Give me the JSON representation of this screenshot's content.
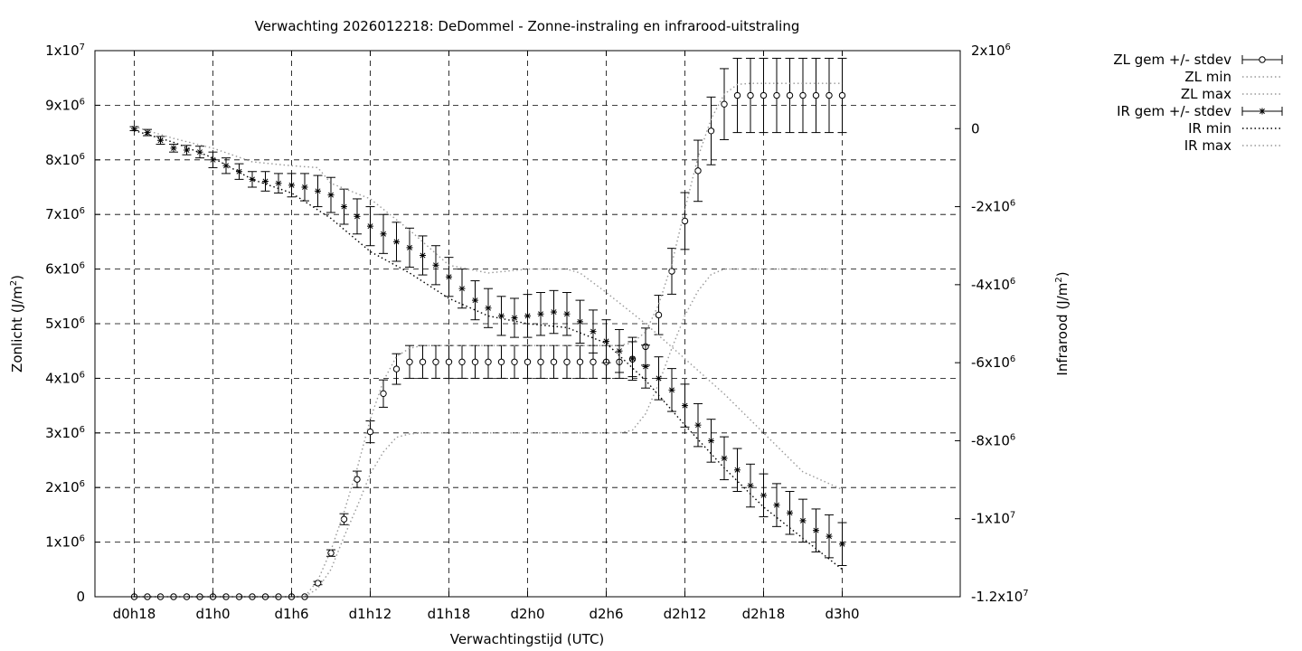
{
  "chart_data": {
    "type": "line",
    "title": "Verwachting 2026012218: DeDommel - Zonne-instraling en infrarood-uitstraling",
    "xlabel": "Verwachtingstijd (UTC)",
    "ylabel_left": {
      "base": "Zonlicht (J/m",
      "sup": "2",
      "tail": ")"
    },
    "ylabel_right": {
      "base": "Infrarood (J/m",
      "sup": "2",
      "tail": ")"
    },
    "x_unit": "hours",
    "xlim": [
      -3,
      63
    ],
    "y_left_lim": [
      0,
      10000000
    ],
    "y_right_lim": [
      -12000000,
      2000000
    ],
    "grid": true,
    "legend_position": "outside-top-right",
    "x_ticks": [
      {
        "value": 0,
        "label": "d0h18"
      },
      {
        "value": 6,
        "label": "d1h0"
      },
      {
        "value": 12,
        "label": "d1h6"
      },
      {
        "value": 18,
        "label": "d1h12"
      },
      {
        "value": 24,
        "label": "d1h18"
      },
      {
        "value": 30,
        "label": "d2h0"
      },
      {
        "value": 36,
        "label": "d2h6"
      },
      {
        "value": 42,
        "label": "d2h12"
      },
      {
        "value": 48,
        "label": "d2h18"
      },
      {
        "value": 54,
        "label": "d3h0"
      }
    ],
    "y_left_ticks": [
      {
        "value": 0,
        "base": "0",
        "exp": ""
      },
      {
        "value": 1000000,
        "base": "1x10",
        "exp": "6"
      },
      {
        "value": 2000000,
        "base": "2x10",
        "exp": "6"
      },
      {
        "value": 3000000,
        "base": "3x10",
        "exp": "6"
      },
      {
        "value": 4000000,
        "base": "4x10",
        "exp": "6"
      },
      {
        "value": 5000000,
        "base": "5x10",
        "exp": "6"
      },
      {
        "value": 6000000,
        "base": "6x10",
        "exp": "6"
      },
      {
        "value": 7000000,
        "base": "7x10",
        "exp": "6"
      },
      {
        "value": 8000000,
        "base": "8x10",
        "exp": "6"
      },
      {
        "value": 9000000,
        "base": "9x10",
        "exp": "6"
      },
      {
        "value": 10000000,
        "base": "1x10",
        "exp": "7"
      }
    ],
    "y_right_ticks": [
      {
        "value": -12000000,
        "base": "-1.2x10",
        "exp": "7"
      },
      {
        "value": -10000000,
        "base": "-1x10",
        "exp": "7"
      },
      {
        "value": -8000000,
        "base": "-8x10",
        "exp": "6"
      },
      {
        "value": -6000000,
        "base": "-6x10",
        "exp": "6"
      },
      {
        "value": -4000000,
        "base": "-4x10",
        "exp": "6"
      },
      {
        "value": -2000000,
        "base": "-2x10",
        "exp": "6"
      },
      {
        "value": 0,
        "base": "0",
        "exp": ""
      },
      {
        "value": 2000000,
        "base": "2x10",
        "exp": "6"
      }
    ],
    "series": [
      {
        "name": "ZL gem +/- stdev",
        "axis": "left",
        "marker": "circle",
        "errorbars": true,
        "x": [
          0,
          1,
          2,
          3,
          4,
          5,
          6,
          7,
          8,
          9,
          10,
          11,
          12,
          13,
          14,
          15,
          16,
          17,
          18,
          19,
          20,
          21,
          22,
          23,
          24,
          25,
          26,
          27,
          28,
          29,
          30,
          31,
          32,
          33,
          34,
          35,
          36,
          37,
          38,
          39,
          40,
          41,
          42,
          43,
          44,
          45,
          46,
          47,
          48,
          49,
          50,
          51,
          52,
          53,
          54
        ],
        "y": [
          0,
          0,
          0,
          0,
          0,
          0,
          0,
          0,
          0,
          0,
          0,
          0,
          0,
          0,
          250000,
          800000,
          1420000,
          2150000,
          3020000,
          3720000,
          4170000,
          4300000,
          4300000,
          4300000,
          4300000,
          4300000,
          4300000,
          4300000,
          4300000,
          4300000,
          4300000,
          4300000,
          4300000,
          4300000,
          4300000,
          4300000,
          4300000,
          4300000,
          4350000,
          4580000,
          5160000,
          5960000,
          6880000,
          7800000,
          8530000,
          9020000,
          9180000,
          9180000,
          9180000,
          9180000,
          9180000,
          9180000,
          9180000,
          9180000,
          9180000
        ],
        "yerr": [
          0,
          0,
          0,
          0,
          0,
          0,
          0,
          0,
          0,
          0,
          0,
          0,
          0,
          0,
          30000,
          60000,
          100000,
          150000,
          200000,
          250000,
          280000,
          300000,
          300000,
          300000,
          300000,
          300000,
          300000,
          300000,
          300000,
          300000,
          300000,
          300000,
          300000,
          300000,
          300000,
          300000,
          300000,
          300000,
          320000,
          340000,
          360000,
          420000,
          520000,
          560000,
          620000,
          650000,
          680000,
          680000,
          680000,
          680000,
          680000,
          680000,
          680000,
          680000,
          680000
        ]
      },
      {
        "name": "ZL min",
        "axis": "left",
        "style": "dotted",
        "color": "#999999",
        "x": [
          0,
          13,
          14,
          15,
          16,
          17,
          18,
          19,
          20,
          21,
          22,
          23,
          24,
          30,
          36,
          37,
          38,
          39,
          40,
          41,
          42,
          43,
          44,
          45,
          46,
          47,
          48,
          54
        ],
        "y": [
          0,
          0,
          150000,
          500000,
          1100000,
          1650000,
          2250000,
          2650000,
          2920000,
          2980000,
          3000000,
          3000000,
          3000000,
          3000000,
          3000000,
          3000000,
          3050000,
          3350000,
          3900000,
          4550000,
          5150000,
          5600000,
          5900000,
          6000000,
          6000000,
          6000000,
          6000000,
          6000000
        ]
      },
      {
        "name": "ZL max",
        "axis": "left",
        "style": "dotted",
        "color": "#999999",
        "x": [
          0,
          13,
          14,
          15,
          16,
          17,
          18,
          19,
          20,
          21,
          22,
          23,
          24,
          30,
          36,
          37,
          38,
          39,
          40,
          41,
          42,
          43,
          44,
          45,
          46,
          47,
          48,
          54
        ],
        "y": [
          0,
          0,
          300000,
          850000,
          1550000,
          2350000,
          3250000,
          3950000,
          4400000,
          4550000,
          4600000,
          4600000,
          4600000,
          4600000,
          4600000,
          4600000,
          4650000,
          4850000,
          5350000,
          6100000,
          7100000,
          8050000,
          8750000,
          9200000,
          9380000,
          9400000,
          9400000,
          9400000
        ]
      },
      {
        "name": "IR gem +/- stdev",
        "axis": "right",
        "marker": "star",
        "errorbars": true,
        "x": [
          0,
          1,
          2,
          3,
          4,
          5,
          6,
          7,
          8,
          9,
          10,
          11,
          12,
          13,
          14,
          15,
          16,
          17,
          18,
          19,
          20,
          21,
          22,
          23,
          24,
          25,
          26,
          27,
          28,
          29,
          30,
          31,
          32,
          33,
          34,
          35,
          36,
          37,
          38,
          39,
          40,
          41,
          42,
          43,
          44,
          45,
          46,
          47,
          48,
          49,
          50,
          51,
          52,
          53,
          54
        ],
        "y": [
          0,
          -100000,
          -300000,
          -500000,
          -550000,
          -600000,
          -800000,
          -950000,
          -1100000,
          -1300000,
          -1350000,
          -1400000,
          -1450000,
          -1500000,
          -1600000,
          -1700000,
          -2000000,
          -2250000,
          -2500000,
          -2700000,
          -2900000,
          -3050000,
          -3250000,
          -3500000,
          -3800000,
          -4100000,
          -4400000,
          -4600000,
          -4800000,
          -4850000,
          -4800000,
          -4750000,
          -4700000,
          -4750000,
          -4950000,
          -5200000,
          -5450000,
          -5700000,
          -5900000,
          -6100000,
          -6400000,
          -6700000,
          -7100000,
          -7600000,
          -8000000,
          -8450000,
          -8750000,
          -9150000,
          -9400000,
          -9650000,
          -9850000,
          -10050000,
          -10300000,
          -10450000,
          -10650000
        ],
        "yerr": [
          50000,
          80000,
          100000,
          100000,
          120000,
          150000,
          200000,
          200000,
          200000,
          200000,
          250000,
          250000,
          300000,
          350000,
          400000,
          450000,
          450000,
          450000,
          500000,
          500000,
          500000,
          500000,
          500000,
          500000,
          500000,
          500000,
          500000,
          500000,
          500000,
          500000,
          550000,
          550000,
          550000,
          550000,
          550000,
          550000,
          550000,
          550000,
          550000,
          550000,
          550000,
          550000,
          550000,
          550000,
          550000,
          550000,
          550000,
          550000,
          550000,
          550000,
          550000,
          550000,
          550000,
          550000,
          550000
        ]
      },
      {
        "name": "IR min",
        "axis": "right",
        "style": "dotted",
        "color": "#000000",
        "x": [
          0,
          3,
          6,
          9,
          12,
          15,
          18,
          21,
          24,
          27,
          30,
          33,
          36,
          39,
          42,
          45,
          48,
          51,
          54
        ],
        "y": [
          -50000,
          -350000,
          -750000,
          -1300000,
          -1650000,
          -2300000,
          -3150000,
          -3700000,
          -4350000,
          -4800000,
          -5000000,
          -5100000,
          -5500000,
          -6450000,
          -7600000,
          -8700000,
          -9700000,
          -10500000,
          -11300000
        ]
      },
      {
        "name": "IR max",
        "axis": "right",
        "style": "dotted",
        "color": "#999999",
        "x": [
          0,
          3,
          6,
          9,
          12,
          14,
          15,
          18,
          21,
          24,
          27,
          30,
          33,
          34,
          36,
          39,
          42,
          45,
          48,
          51,
          54
        ],
        "y": [
          50000,
          -250000,
          -500000,
          -850000,
          -950000,
          -1000000,
          -1400000,
          -1800000,
          -2600000,
          -3500000,
          -3700000,
          -3600000,
          -3600000,
          -3700000,
          -4200000,
          -5000000,
          -5900000,
          -6800000,
          -7800000,
          -8800000,
          -9250000
        ]
      }
    ]
  }
}
